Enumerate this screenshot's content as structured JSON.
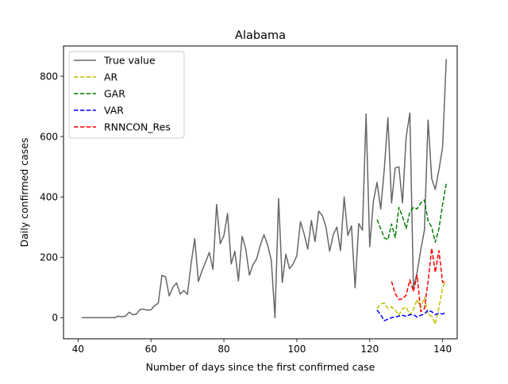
{
  "chart_data": {
    "type": "line",
    "title": "Alabama",
    "xlabel": "Number of days since the first confirmed case",
    "ylabel": "Daily confirmed cases",
    "xlim": [
      36,
      144
    ],
    "ylim": [
      -70,
      900
    ],
    "xticks": [
      40,
      60,
      80,
      100,
      120,
      140
    ],
    "yticks": [
      0,
      200,
      400,
      600,
      800
    ],
    "grid": false,
    "legend_position": "top-left",
    "series": [
      {
        "name": "True value",
        "color": "#666666",
        "style": "solid",
        "x": [
          41,
          42,
          43,
          44,
          45,
          46,
          47,
          48,
          49,
          50,
          51,
          52,
          53,
          54,
          55,
          56,
          57,
          58,
          59,
          60,
          61,
          62,
          63,
          64,
          65,
          66,
          67,
          68,
          69,
          70,
          71,
          72,
          73,
          74,
          75,
          76,
          77,
          78,
          79,
          80,
          81,
          82,
          83,
          84,
          85,
          86,
          87,
          88,
          89,
          90,
          91,
          92,
          93,
          94,
          95,
          96,
          97,
          98,
          99,
          100,
          101,
          102,
          103,
          104,
          105,
          106,
          107,
          108,
          109,
          110,
          111,
          112,
          113,
          114,
          115,
          116,
          117,
          118,
          119,
          120,
          121,
          122,
          123,
          124,
          125,
          126,
          127,
          128,
          129,
          130,
          131,
          132,
          133,
          134,
          135,
          136,
          137,
          138,
          139,
          140,
          141
        ],
        "values": [
          0,
          0,
          0,
          0,
          0,
          0,
          0,
          0,
          0,
          0,
          5,
          3,
          5,
          18,
          10,
          12,
          27,
          28,
          25,
          26,
          40,
          48,
          140,
          135,
          72,
          100,
          115,
          78,
          90,
          77,
          178,
          262,
          120,
          155,
          185,
          216,
          160,
          375,
          245,
          272,
          345,
          178,
          220,
          122,
          270,
          228,
          141,
          176,
          195,
          241,
          275,
          240,
          190,
          0,
          395,
          116,
          210,
          162,
          178,
          205,
          318,
          278,
          227,
          322,
          252,
          353,
          338,
          300,
          220,
          275,
          300,
          222,
          400,
          272,
          304,
          99,
          312,
          290,
          675,
          235,
          385,
          448,
          360,
          490,
          662,
          380,
          496,
          500,
          380,
          598,
          678,
          99,
          150,
          225,
          290,
          655,
          460,
          425,
          490,
          565,
          856
        ]
      },
      {
        "name": "AR",
        "color": "#bfbf00",
        "style": "dashed",
        "x": [
          122,
          123,
          124,
          125,
          126,
          127,
          128,
          129,
          130,
          131,
          132,
          133,
          134,
          135,
          136,
          137,
          138,
          139,
          140,
          141
        ],
        "values": [
          30,
          46,
          48,
          30,
          36,
          25,
          8,
          30,
          35,
          10,
          27,
          60,
          33,
          67,
          10,
          5,
          -22,
          33,
          100,
          122
        ]
      },
      {
        "name": "GAR",
        "color": "#007f00",
        "style": "dashed",
        "x": [
          122,
          123,
          124,
          125,
          126,
          127,
          128,
          129,
          130,
          131,
          132,
          133,
          134,
          135,
          136,
          137,
          138,
          139,
          140,
          141
        ],
        "values": [
          325,
          295,
          265,
          258,
          310,
          265,
          365,
          335,
          295,
          350,
          365,
          360,
          380,
          390,
          320,
          300,
          250,
          295,
          375,
          443
        ]
      },
      {
        "name": "VAR",
        "color": "#0000ff",
        "style": "dashed",
        "x": [
          122,
          123,
          124,
          125,
          126,
          127,
          128,
          129,
          130,
          131,
          132,
          133,
          134,
          135,
          136,
          137,
          138,
          139,
          140,
          141
        ],
        "values": [
          25,
          10,
          -10,
          -5,
          0,
          2,
          5,
          8,
          4,
          10,
          10,
          2,
          8,
          12,
          25,
          20,
          10,
          15,
          12,
          18
        ]
      },
      {
        "name": "RNNCON_Res",
        "color": "#ff0000",
        "style": "dashed",
        "x": [
          126,
          127,
          128,
          129,
          130,
          131,
          132,
          133,
          134,
          135,
          136,
          137,
          138,
          139,
          140,
          141
        ],
        "values": [
          120,
          80,
          60,
          62,
          75,
          125,
          87,
          140,
          20,
          30,
          120,
          230,
          150,
          222,
          117,
          120
        ]
      }
    ]
  }
}
